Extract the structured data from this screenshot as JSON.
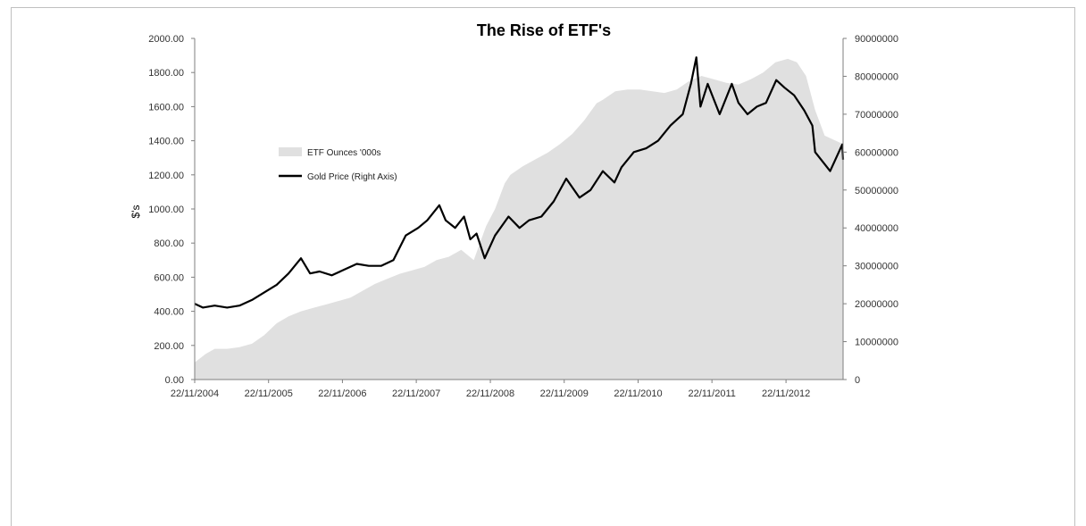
{
  "chart_data": {
    "type": "area",
    "title": "The Rise of ETF's",
    "ylabel": "$'s",
    "ylabel_right": "",
    "xlabel": "",
    "xlim": [
      "2004-11-22",
      "2013-08-31"
    ],
    "ylim": [
      0,
      2000
    ],
    "ylim_right": [
      0,
      90000000
    ],
    "y_ticks": [
      "0.00",
      "200.00",
      "400.00",
      "600.00",
      "800.00",
      "1000.00",
      "1200.00",
      "1400.00",
      "1600.00",
      "1800.00",
      "2000.00"
    ],
    "y_ticks_right": [
      "0",
      "10000000",
      "20000000",
      "30000000",
      "40000000",
      "50000000",
      "60000000",
      "70000000",
      "80000000",
      "90000000"
    ],
    "x_ticks": [
      "22/11/2004",
      "22/11/2005",
      "22/11/2006",
      "22/11/2007",
      "22/11/2008",
      "22/11/2009",
      "22/11/2010",
      "22/11/2011",
      "22/11/2012"
    ],
    "grid": false,
    "legend_position": "upper-left",
    "series": [
      {
        "name": "ETF Ounces '000s",
        "kind": "area",
        "axis": "left",
        "color": "#e0e0e0",
        "x": [
          "2004-11-22",
          "2005-01-15",
          "2005-03-01",
          "2005-05-01",
          "2005-07-01",
          "2005-09-01",
          "2005-11-01",
          "2006-01-01",
          "2006-03-01",
          "2006-05-01",
          "2006-07-01",
          "2006-09-01",
          "2006-11-01",
          "2007-01-01",
          "2007-03-01",
          "2007-05-01",
          "2007-07-01",
          "2007-09-01",
          "2007-11-01",
          "2008-01-01",
          "2008-03-01",
          "2008-05-01",
          "2008-07-01",
          "2008-09-01",
          "2008-11-01",
          "2008-12-15",
          "2009-02-01",
          "2009-03-01",
          "2009-05-01",
          "2009-07-01",
          "2009-09-01",
          "2009-11-01",
          "2010-01-01",
          "2010-03-01",
          "2010-05-01",
          "2010-06-01",
          "2010-08-01",
          "2010-10-01",
          "2010-12-01",
          "2011-02-01",
          "2011-04-01",
          "2011-06-01",
          "2011-08-01",
          "2011-10-01",
          "2011-12-01",
          "2012-02-01",
          "2012-04-01",
          "2012-06-01",
          "2012-08-01",
          "2012-10-01",
          "2012-12-01",
          "2013-01-15",
          "2013-03-01",
          "2013-04-15",
          "2013-06-01",
          "2013-08-31"
        ],
        "values": [
          100,
          150,
          180,
          180,
          190,
          210,
          260,
          330,
          370,
          400,
          420,
          440,
          460,
          480,
          520,
          560,
          590,
          620,
          640,
          660,
          700,
          720,
          760,
          700,
          900,
          1000,
          1150,
          1200,
          1250,
          1290,
          1330,
          1380,
          1440,
          1520,
          1620,
          1640,
          1690,
          1700,
          1700,
          1690,
          1680,
          1700,
          1750,
          1780,
          1760,
          1740,
          1730,
          1760,
          1800,
          1860,
          1880,
          1860,
          1780,
          1580,
          1430,
          1380
        ]
      },
      {
        "name": "Gold Price (Right Axis)",
        "kind": "line",
        "axis": "right",
        "color": "#000000",
        "x": [
          "2004-11-22",
          "2005-01-01",
          "2005-03-01",
          "2005-05-01",
          "2005-07-01",
          "2005-09-01",
          "2005-11-01",
          "2006-01-01",
          "2006-03-01",
          "2006-05-01",
          "2006-06-15",
          "2006-08-01",
          "2006-10-01",
          "2006-12-01",
          "2007-02-01",
          "2007-04-01",
          "2007-06-01",
          "2007-08-01",
          "2007-10-01",
          "2007-12-01",
          "2008-01-15",
          "2008-03-15",
          "2008-04-15",
          "2008-06-01",
          "2008-07-15",
          "2008-08-15",
          "2008-09-15",
          "2008-10-25",
          "2008-12-15",
          "2009-02-20",
          "2009-04-15",
          "2009-06-01",
          "2009-08-01",
          "2009-10-01",
          "2009-12-02",
          "2010-02-05",
          "2010-04-01",
          "2010-06-01",
          "2010-07-28",
          "2010-09-01",
          "2010-11-01",
          "2011-01-01",
          "2011-03-01",
          "2011-05-01",
          "2011-07-01",
          "2011-08-10",
          "2011-09-06",
          "2011-09-26",
          "2011-11-01",
          "2011-12-30",
          "2012-02-28",
          "2012-04-01",
          "2012-05-16",
          "2012-07-01",
          "2012-08-15",
          "2012-10-05",
          "2012-11-15",
          "2013-01-01",
          "2013-02-20",
          "2013-04-01",
          "2013-04-15",
          "2013-06-28",
          "2013-08-27",
          "2013-08-31"
        ],
        "values": [
          20000000,
          19000000,
          19500000,
          19000000,
          19500000,
          21000000,
          23000000,
          25000000,
          28000000,
          32000000,
          28000000,
          28500000,
          27500000,
          29000000,
          30500000,
          30000000,
          30000000,
          31500000,
          38000000,
          40000000,
          42000000,
          46000000,
          42000000,
          40000000,
          43000000,
          37000000,
          38500000,
          32000000,
          38000000,
          43000000,
          40000000,
          42000000,
          43000000,
          47000000,
          53000000,
          48000000,
          50000000,
          55000000,
          52000000,
          56000000,
          60000000,
          61000000,
          63000000,
          67000000,
          70000000,
          78000000,
          85000000,
          72000000,
          78000000,
          70000000,
          78000000,
          73000000,
          70000000,
          72000000,
          73000000,
          79000000,
          77000000,
          75000000,
          71000000,
          67000000,
          60000000,
          55000000,
          62000000,
          58000000
        ]
      }
    ]
  }
}
